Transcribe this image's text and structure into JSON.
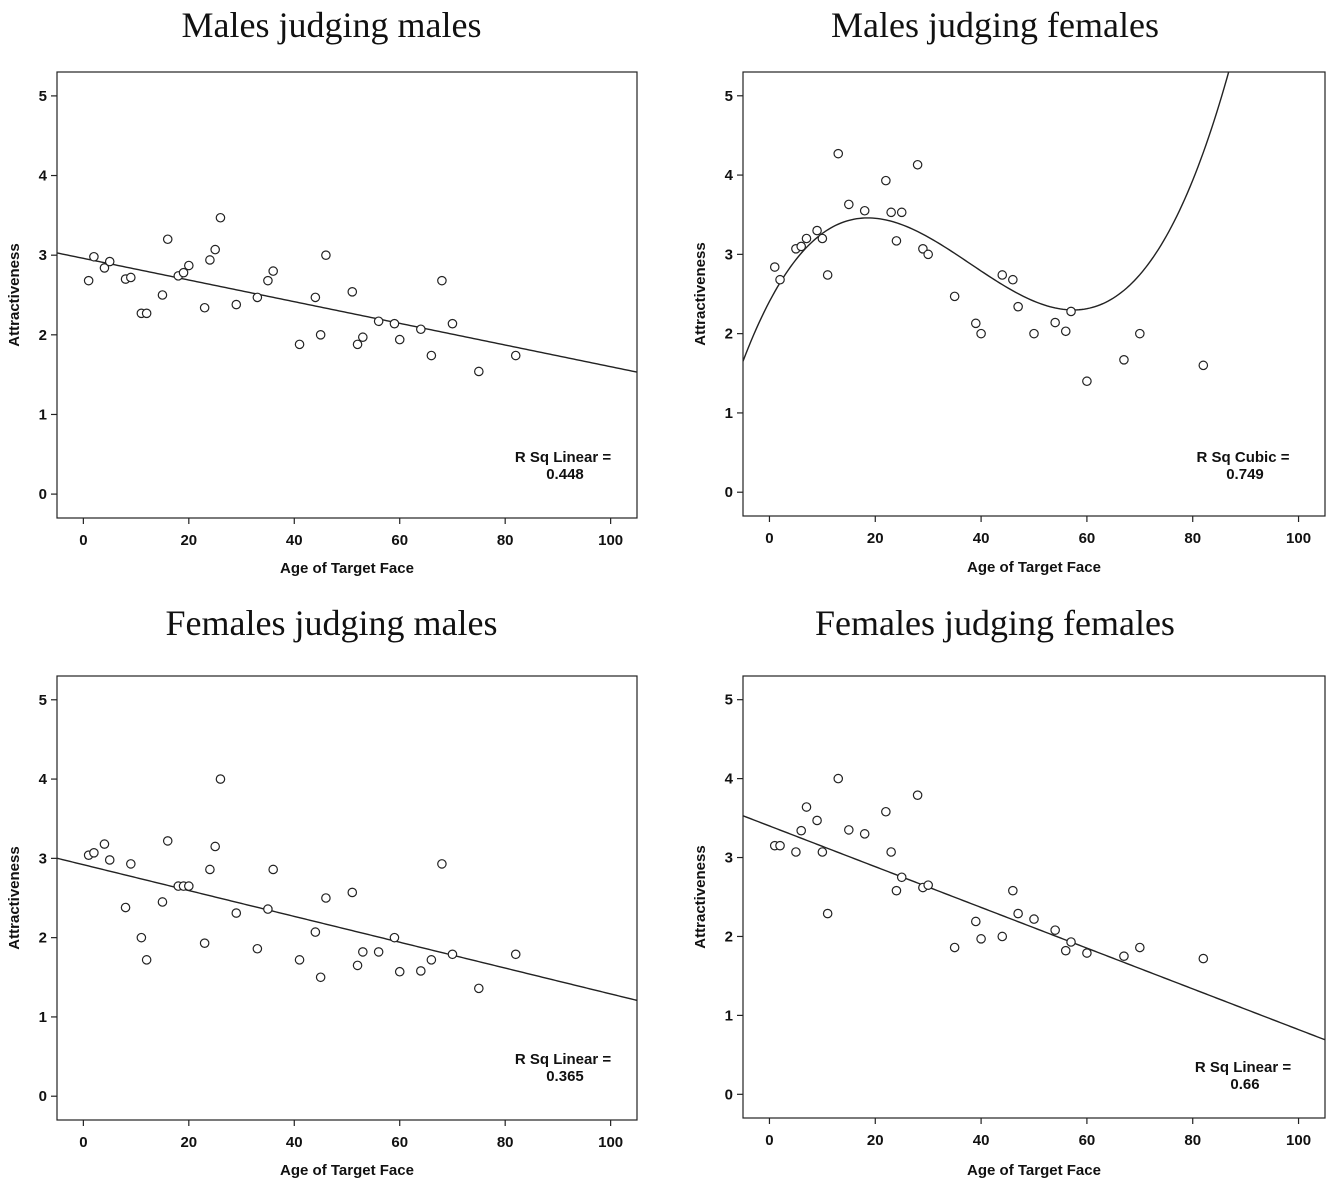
{
  "chart_data": [
    {
      "type": "scatter",
      "title": "Males judging males",
      "xlabel": "Age of Target Face",
      "ylabel": "Attractiveness",
      "xlim": [
        -5,
        105
      ],
      "ylim": [
        -0.3,
        5.3
      ],
      "xticks": [
        0,
        20,
        40,
        60,
        80,
        100
      ],
      "yticks": [
        0,
        1,
        2,
        3,
        4,
        5
      ],
      "fit": {
        "type": "linear",
        "coefficients": [
          2.96,
          -0.0136
        ],
        "label": "R Sq Linear =",
        "r2": "0.448"
      },
      "points": [
        [
          1,
          2.68
        ],
        [
          2,
          2.98
        ],
        [
          4,
          2.84
        ],
        [
          5,
          2.92
        ],
        [
          8,
          2.7
        ],
        [
          9,
          2.72
        ],
        [
          11,
          2.27
        ],
        [
          12,
          2.27
        ],
        [
          15,
          2.5
        ],
        [
          16,
          3.2
        ],
        [
          18,
          2.74
        ],
        [
          19,
          2.78
        ],
        [
          20,
          2.87
        ],
        [
          23,
          2.34
        ],
        [
          24,
          2.94
        ],
        [
          25,
          3.07
        ],
        [
          26,
          3.47
        ],
        [
          29,
          2.38
        ],
        [
          33,
          2.47
        ],
        [
          35,
          2.68
        ],
        [
          36,
          2.8
        ],
        [
          41,
          1.88
        ],
        [
          44,
          2.47
        ],
        [
          45,
          2.0
        ],
        [
          46,
          3.0
        ],
        [
          51,
          2.54
        ],
        [
          52,
          1.88
        ],
        [
          53,
          1.97
        ],
        [
          56,
          2.17
        ],
        [
          59,
          2.14
        ],
        [
          60,
          1.94
        ],
        [
          64,
          2.07
        ],
        [
          66,
          1.74
        ],
        [
          68,
          2.68
        ],
        [
          70,
          2.14
        ],
        [
          75,
          1.54
        ],
        [
          82,
          1.74
        ]
      ]
    },
    {
      "type": "scatter",
      "title": "Males judging females",
      "xlabel": "Age of Target Face",
      "ylabel": "Attractiveness",
      "xlim": [
        -5,
        105
      ],
      "ylim": [
        -0.3,
        5.3
      ],
      "xticks": [
        0,
        20,
        40,
        60,
        80,
        100
      ],
      "yticks": [
        0,
        1,
        2,
        3,
        4,
        5
      ],
      "fit": {
        "type": "cubic",
        "coefficients": [
          2.4057,
          0.1271,
          -0.004525,
          3.969e-05
        ],
        "label": "R Sq Cubic =",
        "r2": "0.749"
      },
      "points": [
        [
          1,
          2.84
        ],
        [
          2,
          2.68
        ],
        [
          5,
          3.07
        ],
        [
          6,
          3.1
        ],
        [
          7,
          3.2
        ],
        [
          9,
          3.3
        ],
        [
          10,
          3.2
        ],
        [
          11,
          2.74
        ],
        [
          13,
          4.27
        ],
        [
          15,
          3.63
        ],
        [
          18,
          3.55
        ],
        [
          22,
          3.93
        ],
        [
          23,
          3.53
        ],
        [
          24,
          3.17
        ],
        [
          25,
          3.53
        ],
        [
          28,
          4.13
        ],
        [
          29,
          3.07
        ],
        [
          30,
          3.0
        ],
        [
          35,
          2.47
        ],
        [
          39,
          2.13
        ],
        [
          40,
          2.0
        ],
        [
          44,
          2.74
        ],
        [
          46,
          2.68
        ],
        [
          47,
          2.34
        ],
        [
          50,
          2.0
        ],
        [
          54,
          2.14
        ],
        [
          56,
          2.03
        ],
        [
          57,
          2.28
        ],
        [
          60,
          1.4
        ],
        [
          67,
          1.67
        ],
        [
          70,
          2.0
        ],
        [
          82,
          1.6
        ]
      ]
    },
    {
      "type": "scatter",
      "title": "Females judging males",
      "xlabel": "Age of Target Face",
      "ylabel": "Attractiveness",
      "xlim": [
        -5,
        105
      ],
      "ylim": [
        -0.3,
        5.3
      ],
      "xticks": [
        0,
        20,
        40,
        60,
        80,
        100
      ],
      "yticks": [
        0,
        1,
        2,
        3,
        4,
        5
      ],
      "fit": {
        "type": "linear",
        "coefficients": [
          2.92,
          -0.0163
        ],
        "label": "R Sq Linear =",
        "r2": "0.365"
      },
      "points": [
        [
          1,
          3.04
        ],
        [
          2,
          3.07
        ],
        [
          4,
          3.18
        ],
        [
          5,
          2.98
        ],
        [
          8,
          2.38
        ],
        [
          9,
          2.93
        ],
        [
          11,
          2.0
        ],
        [
          12,
          1.72
        ],
        [
          15,
          2.45
        ],
        [
          16,
          3.22
        ],
        [
          18,
          2.65
        ],
        [
          19,
          2.65
        ],
        [
          20,
          2.65
        ],
        [
          23,
          1.93
        ],
        [
          24,
          2.86
        ],
        [
          25,
          3.15
        ],
        [
          26,
          4.0
        ],
        [
          29,
          2.31
        ],
        [
          33,
          1.86
        ],
        [
          35,
          2.36
        ],
        [
          36,
          2.86
        ],
        [
          41,
          1.72
        ],
        [
          44,
          2.07
        ],
        [
          45,
          1.5
        ],
        [
          46,
          2.5
        ],
        [
          51,
          2.57
        ],
        [
          52,
          1.65
        ],
        [
          53,
          1.82
        ],
        [
          56,
          1.82
        ],
        [
          59,
          2.0
        ],
        [
          60,
          1.57
        ],
        [
          64,
          1.58
        ],
        [
          66,
          1.72
        ],
        [
          68,
          2.93
        ],
        [
          70,
          1.79
        ],
        [
          75,
          1.36
        ],
        [
          82,
          1.79
        ]
      ]
    },
    {
      "type": "scatter",
      "title": "Females judging females",
      "xlabel": "Age of Target Face",
      "ylabel": "Attractiveness",
      "xlim": [
        -5,
        105
      ],
      "ylim": [
        -0.3,
        5.3
      ],
      "xticks": [
        0,
        20,
        40,
        60,
        80,
        100
      ],
      "yticks": [
        0,
        1,
        2,
        3,
        4,
        5
      ],
      "fit": {
        "type": "linear",
        "coefficients": [
          3.4,
          -0.0258
        ],
        "label": "R Sq Linear =",
        "r2": "0.66"
      },
      "points": [
        [
          1,
          3.15
        ],
        [
          2,
          3.15
        ],
        [
          5,
          3.07
        ],
        [
          6,
          3.34
        ],
        [
          7,
          3.64
        ],
        [
          9,
          3.47
        ],
        [
          10,
          3.07
        ],
        [
          11,
          2.29
        ],
        [
          13,
          4.0
        ],
        [
          15,
          3.35
        ],
        [
          18,
          3.3
        ],
        [
          22,
          3.58
        ],
        [
          23,
          3.07
        ],
        [
          24,
          2.58
        ],
        [
          25,
          2.75
        ],
        [
          28,
          3.79
        ],
        [
          29,
          2.62
        ],
        [
          30,
          2.65
        ],
        [
          35,
          1.86
        ],
        [
          39,
          2.19
        ],
        [
          40,
          1.97
        ],
        [
          44,
          2.0
        ],
        [
          46,
          2.58
        ],
        [
          47,
          2.29
        ],
        [
          50,
          2.22
        ],
        [
          54,
          2.08
        ],
        [
          56,
          1.82
        ],
        [
          57,
          1.93
        ],
        [
          60,
          1.79
        ],
        [
          67,
          1.75
        ],
        [
          70,
          1.86
        ],
        [
          82,
          1.72
        ]
      ]
    }
  ]
}
